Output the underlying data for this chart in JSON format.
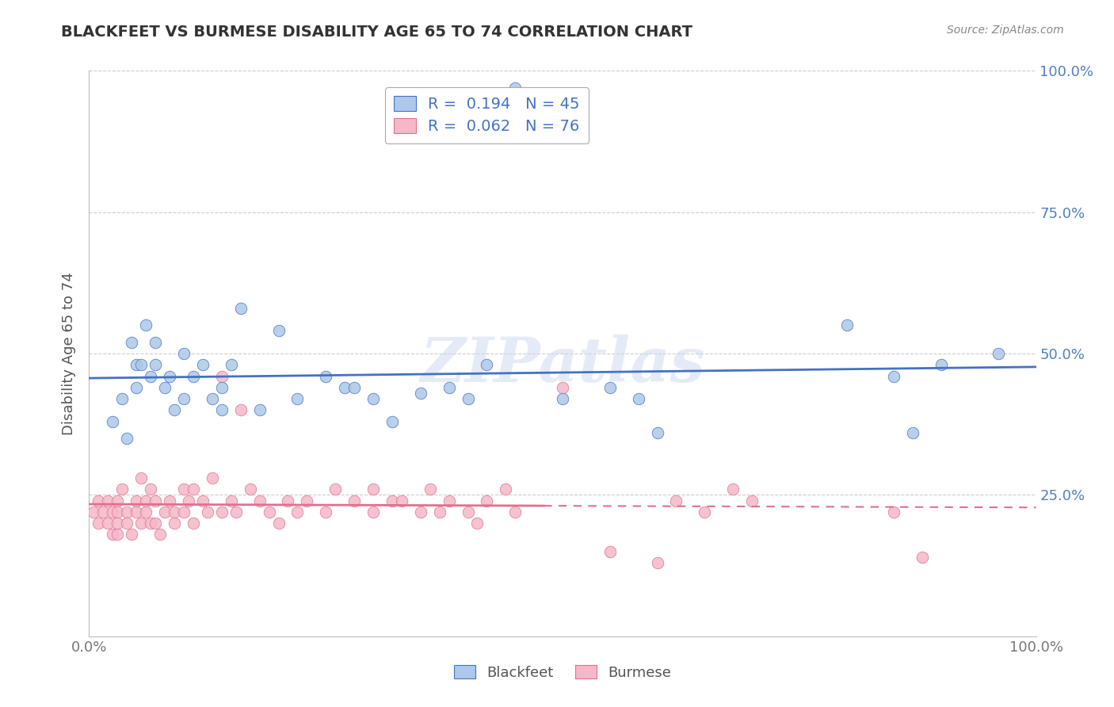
{
  "title": "BLACKFEET VS BURMESE DISABILITY AGE 65 TO 74 CORRELATION CHART",
  "source": "Source: ZipAtlas.com",
  "ylabel": "Disability Age 65 to 74",
  "xlim": [
    0,
    1.0
  ],
  "ylim": [
    0,
    1.0
  ],
  "blackfeet_R": 0.194,
  "blackfeet_N": 45,
  "burmese_R": 0.062,
  "burmese_N": 76,
  "blackfeet_color": "#adc8e8",
  "blackfeet_line_color": "#4472c4",
  "burmese_color": "#f5b8c8",
  "burmese_line_color": "#e07090",
  "grid_color": "#cccccc",
  "background_color": "#ffffff",
  "tick_color": "#5080c0",
  "blackfeet_x": [
    0.025,
    0.035,
    0.04,
    0.045,
    0.05,
    0.05,
    0.055,
    0.06,
    0.065,
    0.07,
    0.07,
    0.08,
    0.085,
    0.09,
    0.1,
    0.1,
    0.11,
    0.12,
    0.13,
    0.14,
    0.14,
    0.15,
    0.16,
    0.18,
    0.2,
    0.22,
    0.25,
    0.27,
    0.28,
    0.3,
    0.32,
    0.35,
    0.38,
    0.4,
    0.42,
    0.45,
    0.5,
    0.55,
    0.58,
    0.6,
    0.8,
    0.85,
    0.87,
    0.9,
    0.96
  ],
  "blackfeet_y": [
    0.38,
    0.42,
    0.35,
    0.52,
    0.48,
    0.44,
    0.48,
    0.55,
    0.46,
    0.52,
    0.48,
    0.44,
    0.46,
    0.4,
    0.42,
    0.5,
    0.46,
    0.48,
    0.42,
    0.4,
    0.44,
    0.48,
    0.58,
    0.4,
    0.54,
    0.42,
    0.46,
    0.44,
    0.44,
    0.42,
    0.38,
    0.43,
    0.44,
    0.42,
    0.48,
    0.97,
    0.42,
    0.44,
    0.42,
    0.36,
    0.55,
    0.46,
    0.36,
    0.48,
    0.5
  ],
  "burmese_x": [
    0.005,
    0.01,
    0.01,
    0.015,
    0.02,
    0.02,
    0.025,
    0.025,
    0.03,
    0.03,
    0.03,
    0.03,
    0.035,
    0.04,
    0.04,
    0.045,
    0.05,
    0.05,
    0.055,
    0.055,
    0.06,
    0.06,
    0.065,
    0.065,
    0.07,
    0.07,
    0.075,
    0.08,
    0.085,
    0.09,
    0.09,
    0.1,
    0.1,
    0.105,
    0.11,
    0.11,
    0.12,
    0.125,
    0.13,
    0.14,
    0.14,
    0.15,
    0.155,
    0.16,
    0.17,
    0.18,
    0.19,
    0.2,
    0.21,
    0.22,
    0.23,
    0.25,
    0.26,
    0.28,
    0.3,
    0.3,
    0.32,
    0.33,
    0.35,
    0.36,
    0.37,
    0.38,
    0.4,
    0.41,
    0.42,
    0.44,
    0.45,
    0.5,
    0.55,
    0.6,
    0.62,
    0.65,
    0.68,
    0.7,
    0.85,
    0.88
  ],
  "burmese_y": [
    0.22,
    0.2,
    0.24,
    0.22,
    0.24,
    0.2,
    0.22,
    0.18,
    0.24,
    0.22,
    0.18,
    0.2,
    0.26,
    0.22,
    0.2,
    0.18,
    0.24,
    0.22,
    0.2,
    0.28,
    0.24,
    0.22,
    0.2,
    0.26,
    0.24,
    0.2,
    0.18,
    0.22,
    0.24,
    0.22,
    0.2,
    0.26,
    0.22,
    0.24,
    0.26,
    0.2,
    0.24,
    0.22,
    0.28,
    0.22,
    0.46,
    0.24,
    0.22,
    0.4,
    0.26,
    0.24,
    0.22,
    0.2,
    0.24,
    0.22,
    0.24,
    0.22,
    0.26,
    0.24,
    0.22,
    0.26,
    0.24,
    0.24,
    0.22,
    0.26,
    0.22,
    0.24,
    0.22,
    0.2,
    0.24,
    0.26,
    0.22,
    0.44,
    0.15,
    0.13,
    0.24,
    0.22,
    0.26,
    0.24,
    0.22,
    0.14
  ]
}
